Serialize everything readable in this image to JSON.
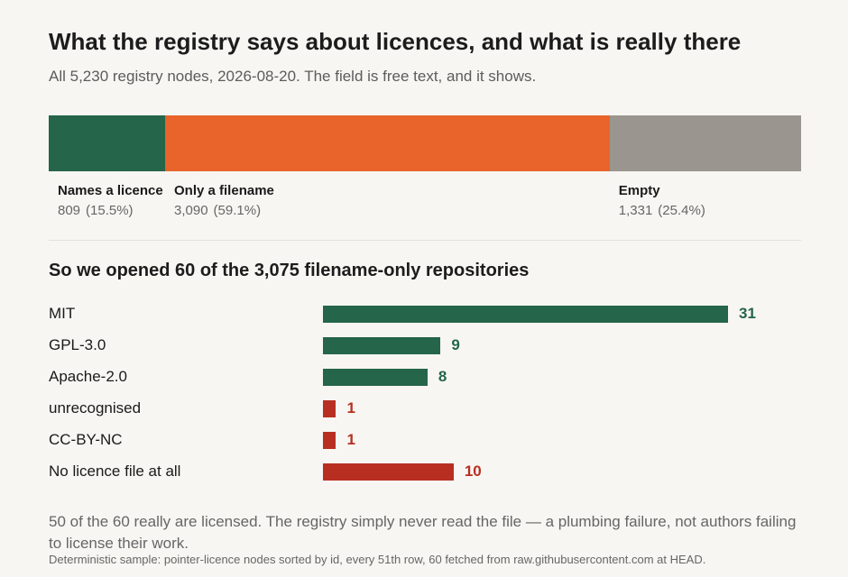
{
  "title": "What the registry says about licences, and what is really there",
  "subtitle": "All 5,230 registry nodes, 2026-08-20. The field is free text, and it shows.",
  "section_title": "So we opened 60 of the 3,075 filename-only repositories",
  "footnote": "50 of the 60 really are licensed. The registry simply never read the file — a plumbing failure, not authors failing to license their work.",
  "source": "Deterministic sample: pointer-licence nodes sorted by id, every 51th row, 60 fetched from raw.githubusercontent.com at HEAD.",
  "colors": {
    "licensed": "#25654a",
    "filename": "#e8642b",
    "empty": "#9a958e",
    "problem": "#b82f22"
  },
  "chart_data": [
    {
      "type": "bar",
      "orientation": "horizontal-stacked",
      "total": 5230,
      "segments": [
        {
          "name": "Names a licence",
          "value": 809,
          "value_label": "809",
          "pct_label": "(15.5%)",
          "color": "#25654a"
        },
        {
          "name": "Only a filename",
          "value": 3090,
          "value_label": "3,090",
          "pct_label": "(59.1%)",
          "color": "#e8642b"
        },
        {
          "name": "Empty",
          "value": 1331,
          "value_label": "1,331",
          "pct_label": "(25.4%)",
          "color": "#9a958e"
        }
      ]
    },
    {
      "type": "bar",
      "orientation": "horizontal",
      "xlim": [
        0,
        31
      ],
      "categories": [
        "MIT",
        "GPL-3.0",
        "Apache-2.0",
        "unrecognised",
        "CC-BY-NC",
        "No licence file at all"
      ],
      "values": [
        31,
        9,
        8,
        1,
        1,
        10
      ],
      "bar_colors": [
        "#25654a",
        "#25654a",
        "#25654a",
        "#b82f22",
        "#b82f22",
        "#b82f22"
      ]
    }
  ]
}
